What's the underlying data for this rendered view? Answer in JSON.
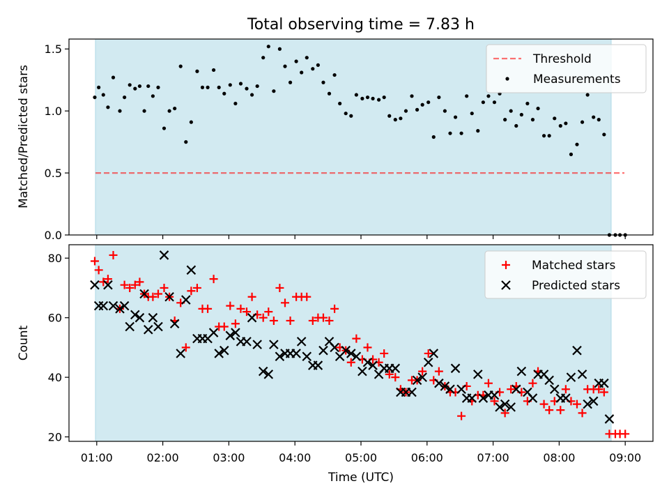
{
  "title": "Total observing time = 7.83 h",
  "colors": {
    "observing_band": "#add8e6",
    "threshold": "#ff0000",
    "measurements": "#000000",
    "matched": "#ff0000",
    "predicted": "#000000"
  },
  "chart_data": [
    {
      "type": "scatter",
      "ylabel": "Matched/Predicted stars",
      "ylim": [
        0,
        1.58
      ],
      "yticks": [
        "0.0",
        "0.5",
        "1.0",
        "1.5"
      ],
      "xlim": [
        0.58,
        9.42
      ],
      "observing_window": [
        0.93,
        8.76
      ],
      "legend": "top-right",
      "threshold": {
        "name": "Threshold",
        "y": 0.5,
        "x_range": [
          0.93,
          8.95
        ]
      },
      "series": [
        {
          "name": "Measurements",
          "x": [
            0.97,
            1.03,
            1.1,
            1.17,
            1.25,
            1.35,
            1.42,
            1.5,
            1.58,
            1.65,
            1.72,
            1.78,
            1.85,
            1.93,
            2.02,
            2.1,
            2.18,
            2.27,
            2.35,
            2.43,
            2.52,
            2.6,
            2.68,
            2.77,
            2.85,
            2.93,
            3.02,
            3.1,
            3.18,
            3.27,
            3.35,
            3.43,
            3.52,
            3.6,
            3.68,
            3.77,
            3.85,
            3.93,
            4.02,
            4.1,
            4.18,
            4.27,
            4.35,
            4.43,
            4.52,
            4.6,
            4.68,
            4.77,
            4.85,
            4.93,
            5.02,
            5.1,
            5.18,
            5.27,
            5.35,
            5.43,
            5.52,
            5.6,
            5.68,
            5.77,
            5.85,
            5.93,
            6.02,
            6.1,
            6.18,
            6.27,
            6.35,
            6.43,
            6.52,
            6.6,
            6.68,
            6.77,
            6.85,
            6.93,
            7.02,
            7.1,
            7.18,
            7.27,
            7.35,
            7.43,
            7.52,
            7.6,
            7.68,
            7.77,
            7.85,
            7.93,
            8.02,
            8.1,
            8.18,
            8.27,
            8.35,
            8.43,
            8.52,
            8.6,
            8.68,
            8.76,
            8.85,
            8.92,
            9.0
          ],
          "y": [
            1.11,
            1.19,
            1.13,
            1.03,
            1.27,
            1.0,
            1.11,
            1.21,
            1.18,
            1.2,
            1.0,
            1.2,
            1.12,
            1.19,
            0.86,
            1.0,
            1.02,
            1.36,
            0.75,
            0.91,
            1.32,
            1.19,
            1.19,
            1.33,
            1.19,
            1.14,
            1.21,
            1.06,
            1.22,
            1.18,
            1.13,
            1.2,
            1.43,
            1.52,
            1.16,
            1.5,
            1.36,
            1.23,
            1.4,
            1.31,
            1.43,
            1.34,
            1.37,
            1.23,
            1.14,
            1.29,
            1.06,
            0.98,
            0.96,
            1.13,
            1.1,
            1.11,
            1.1,
            1.09,
            1.11,
            0.96,
            0.93,
            0.94,
            1.0,
            1.12,
            1.01,
            1.05,
            1.07,
            0.79,
            1.11,
            1.0,
            0.82,
            0.95,
            0.82,
            1.12,
            0.98,
            0.84,
            1.07,
            1.12,
            1.07,
            1.14,
            0.93,
            1.0,
            0.88,
            0.97,
            1.06,
            0.93,
            1.02,
            0.8,
            0.8,
            0.94,
            0.88,
            0.9,
            0.65,
            0.73,
            0.91,
            1.13,
            0.95,
            0.93,
            0.81,
            0.0,
            0.0,
            0.0,
            0.0
          ]
        }
      ]
    },
    {
      "type": "scatter",
      "xlabel": "Time (UTC)",
      "ylabel": "Count",
      "ylim": [
        18.5,
        84.5
      ],
      "yticks": [
        "20",
        "40",
        "60",
        "80"
      ],
      "xlim": [
        0.58,
        9.42
      ],
      "xticks": [
        "01:00",
        "02:00",
        "03:00",
        "04:00",
        "05:00",
        "06:00",
        "07:00",
        "08:00",
        "09:00"
      ],
      "observing_window": [
        0.93,
        8.76
      ],
      "legend": "top-right",
      "series": [
        {
          "name": "Matched stars",
          "x": [
            0.97,
            1.03,
            1.1,
            1.17,
            1.25,
            1.35,
            1.42,
            1.5,
            1.58,
            1.65,
            1.72,
            1.78,
            1.85,
            1.93,
            2.02,
            2.1,
            2.18,
            2.27,
            2.35,
            2.43,
            2.52,
            2.6,
            2.68,
            2.77,
            2.85,
            2.93,
            3.02,
            3.1,
            3.18,
            3.27,
            3.35,
            3.43,
            3.52,
            3.6,
            3.68,
            3.77,
            3.85,
            3.93,
            4.02,
            4.1,
            4.18,
            4.27,
            4.35,
            4.43,
            4.52,
            4.6,
            4.68,
            4.77,
            4.85,
            4.93,
            5.02,
            5.1,
            5.18,
            5.27,
            5.35,
            5.43,
            5.52,
            5.6,
            5.68,
            5.77,
            5.85,
            5.93,
            6.02,
            6.1,
            6.18,
            6.27,
            6.35,
            6.43,
            6.52,
            6.6,
            6.68,
            6.77,
            6.85,
            6.93,
            7.02,
            7.1,
            7.18,
            7.27,
            7.35,
            7.43,
            7.52,
            7.6,
            7.68,
            7.77,
            7.85,
            7.93,
            8.02,
            8.1,
            8.18,
            8.27,
            8.35,
            8.43,
            8.52,
            8.6,
            8.68,
            8.76,
            8.85,
            8.92,
            9.0
          ],
          "y": [
            79,
            76,
            72,
            73,
            81,
            63,
            71,
            70,
            71,
            72,
            68,
            67,
            67,
            68,
            70,
            67,
            59,
            65,
            50,
            69,
            70,
            63,
            63,
            73,
            57,
            57,
            64,
            58,
            63,
            62,
            67,
            61,
            60,
            62,
            59,
            70,
            65,
            59,
            67,
            67,
            67,
            59,
            60,
            60,
            59,
            63,
            50,
            49,
            45,
            53,
            46,
            50,
            46,
            45,
            48,
            41,
            40,
            36,
            35,
            39,
            39,
            42,
            48,
            39,
            42,
            37,
            35,
            35,
            27,
            37,
            32,
            34,
            34,
            38,
            32,
            35,
            28,
            36,
            37,
            35,
            32,
            38,
            42,
            31,
            29,
            32,
            29,
            36,
            32,
            31,
            28,
            36,
            36,
            36,
            35,
            21,
            21,
            21,
            21
          ]
        },
        {
          "name": "Predicted stars",
          "x": [
            0.97,
            1.03,
            1.1,
            1.17,
            1.25,
            1.35,
            1.42,
            1.5,
            1.58,
            1.65,
            1.72,
            1.78,
            1.85,
            1.93,
            2.02,
            2.1,
            2.18,
            2.27,
            2.35,
            2.43,
            2.52,
            2.6,
            2.68,
            2.77,
            2.85,
            2.93,
            3.02,
            3.1,
            3.18,
            3.27,
            3.35,
            3.43,
            3.52,
            3.6,
            3.68,
            3.77,
            3.85,
            3.93,
            4.02,
            4.1,
            4.18,
            4.27,
            4.35,
            4.43,
            4.52,
            4.6,
            4.68,
            4.77,
            4.85,
            4.93,
            5.02,
            5.1,
            5.18,
            5.27,
            5.35,
            5.43,
            5.52,
            5.6,
            5.68,
            5.77,
            5.85,
            5.93,
            6.02,
            6.1,
            6.18,
            6.27,
            6.35,
            6.43,
            6.52,
            6.6,
            6.68,
            6.77,
            6.85,
            6.93,
            7.02,
            7.1,
            7.18,
            7.27,
            7.35,
            7.43,
            7.52,
            7.6,
            7.68,
            7.77,
            7.85,
            7.93,
            8.02,
            8.1,
            8.18,
            8.27,
            8.35,
            8.43,
            8.52,
            8.6,
            8.68,
            8.76
          ],
          "y": [
            71,
            64,
            64,
            71,
            64,
            63,
            64,
            57,
            61,
            60,
            68,
            56,
            60,
            57,
            81,
            67,
            58,
            48,
            66,
            76,
            53,
            53,
            53,
            55,
            48,
            49,
            54,
            55,
            52,
            52,
            60,
            51,
            42,
            41,
            51,
            47,
            48,
            48,
            48,
            52,
            47,
            44,
            44,
            49,
            52,
            50,
            47,
            49,
            48,
            47,
            42,
            45,
            44,
            41,
            43,
            43,
            43,
            35,
            35,
            35,
            39,
            40,
            45,
            48,
            38,
            37,
            36,
            43,
            36,
            33,
            33,
            41,
            33,
            34,
            34,
            30,
            31,
            30,
            36,
            42,
            35,
            33,
            41,
            41,
            39,
            36,
            33,
            33,
            40,
            49,
            41,
            31,
            32,
            38,
            38,
            26
          ]
        }
      ]
    }
  ]
}
